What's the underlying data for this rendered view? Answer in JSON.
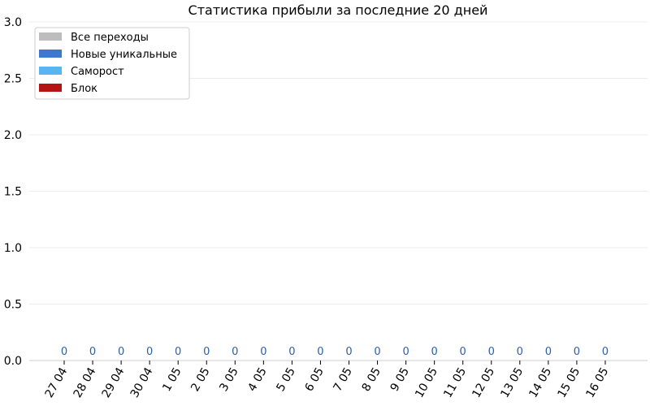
{
  "chart_data": {
    "type": "bar",
    "title": "Статистика прибыли за последние 20 дней",
    "xlabel": "",
    "ylabel": "",
    "ylim": [
      0,
      3.0
    ],
    "yticks": [
      "0.0",
      "0.5",
      "1.0",
      "1.5",
      "2.0",
      "2.5",
      "3.0"
    ],
    "grid": true,
    "legend_position": "top-left",
    "categories": [
      "27 04",
      "28 04",
      "29 04",
      "30 04",
      "1 05",
      "2 05",
      "3 05",
      "4 05",
      "5 05",
      "6 05",
      "7 05",
      "8 05",
      "9 05",
      "10 05",
      "11 05",
      "12 05",
      "13 05",
      "14 05",
      "15 05",
      "16 05"
    ],
    "series": [
      {
        "name": "Все переходы",
        "color": "#bdbdbd",
        "values": [
          0,
          0,
          0,
          0,
          0,
          0,
          0,
          0,
          0,
          0,
          0,
          0,
          0,
          0,
          0,
          0,
          0,
          0,
          0,
          0
        ]
      },
      {
        "name": "Новые уникальные",
        "color": "#3a78d4",
        "values": [
          0,
          0,
          0,
          0,
          0,
          0,
          0,
          0,
          0,
          0,
          0,
          0,
          0,
          0,
          0,
          0,
          0,
          0,
          0,
          0
        ]
      },
      {
        "name": "Самоpост",
        "color": "#5ab4f2",
        "values": [
          0,
          0,
          0,
          0,
          0,
          0,
          0,
          0,
          0,
          0,
          0,
          0,
          0,
          0,
          0,
          0,
          0,
          0,
          0,
          0
        ]
      },
      {
        "name": "Блок",
        "color": "#b51414",
        "values": [
          0,
          0,
          0,
          0,
          0,
          0,
          0,
          0,
          0,
          0,
          0,
          0,
          0,
          0,
          0,
          0,
          0,
          0,
          0,
          0
        ]
      }
    ],
    "data_labels": [
      "0",
      "0",
      "0",
      "0",
      "0",
      "0",
      "0",
      "0",
      "0",
      "0",
      "0",
      "0",
      "0",
      "0",
      "0",
      "0",
      "0",
      "0",
      "0",
      "0"
    ],
    "data_label_color": "#2b5fa8"
  }
}
